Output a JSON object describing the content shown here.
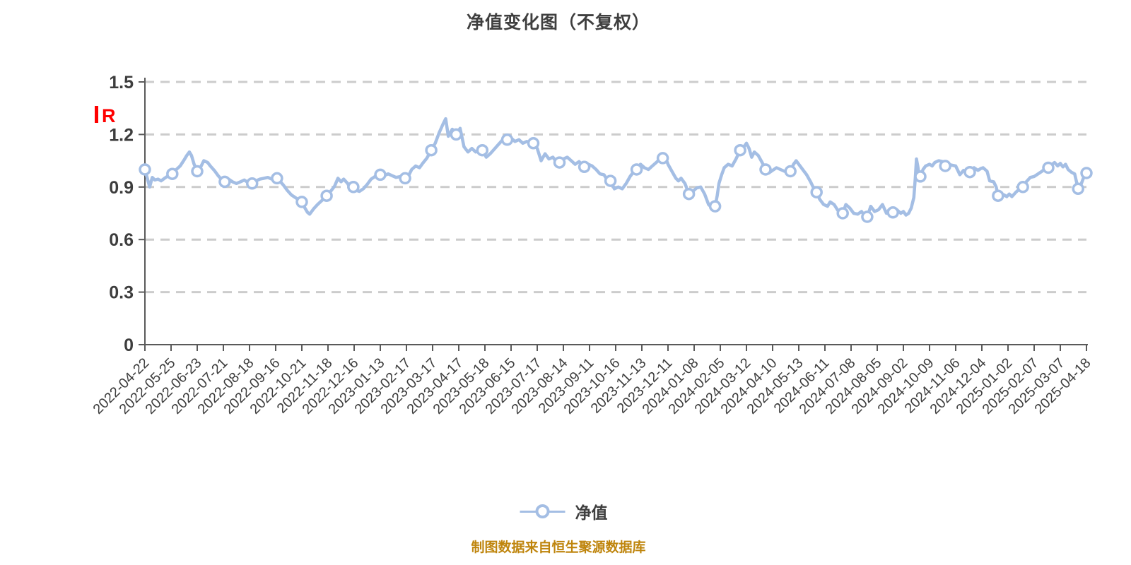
{
  "title": "净值变化图（不复权）",
  "legend": {
    "label": "净值"
  },
  "caption": "制图数据来自恒生聚源数据库",
  "colors": {
    "line": "#a4bee4",
    "marker_fill": "#ffffff",
    "marker_stroke": "#a4bee4",
    "grid": "#cccccc",
    "axis": "#5a5a5a",
    "tick_text": "#3d3d3d",
    "title_text": "#3f3f3f",
    "caption_text": "#bf850d",
    "red_mark": "#ff0000"
  },
  "chart_data": {
    "type": "line",
    "title": "净值变化图（不复权）",
    "series_name": "净值",
    "legend_position": "bottom-center",
    "grid": "horizontal-dashed",
    "ylim": [
      0,
      1.5
    ],
    "y_ticks": [
      "0",
      "0.3",
      "0.6",
      "0.9",
      "1.2",
      "1.5"
    ],
    "y_tick_values": [
      0,
      0.3,
      0.6,
      0.9,
      1.2,
      1.5
    ],
    "red_mark_text": "R",
    "x_tick_labels": [
      "2022-04-22",
      "2022-05-25",
      "2022-06-23",
      "2022-07-21",
      "2022-08-18",
      "2022-09-16",
      "2022-10-21",
      "2022-11-18",
      "2022-12-16",
      "2023-01-13",
      "2023-02-17",
      "2023-03-17",
      "2023-04-17",
      "2023-05-18",
      "2023-06-15",
      "2023-07-17",
      "2023-08-14",
      "2023-09-11",
      "2023-10-16",
      "2023-11-13",
      "2023-12-11",
      "2024-01-08",
      "2024-02-05",
      "2024-03-12",
      "2024-04-10",
      "2024-05-13",
      "2024-06-11",
      "2024-07-08",
      "2024-08-05",
      "2024-09-02",
      "2024-10-09",
      "2024-11-06",
      "2024-12-04",
      "2025-01-02",
      "2025-02-07",
      "2025-03-07",
      "2025-04-18"
    ],
    "points_format": "[x_in_tick_units, nav_value, 1_if_marker]",
    "points": [
      [
        0,
        1.0,
        1
      ],
      [
        0.12,
        0.935
      ],
      [
        0.18,
        0.9
      ],
      [
        0.28,
        0.955
      ],
      [
        0.38,
        0.94
      ],
      [
        0.5,
        0.945
      ],
      [
        0.62,
        0.935
      ],
      [
        0.75,
        0.95
      ],
      [
        0.9,
        0.965
      ],
      [
        1.05,
        0.975,
        1
      ],
      [
        1.2,
        1.0
      ],
      [
        1.35,
        1.02
      ],
      [
        1.5,
        1.055
      ],
      [
        1.6,
        1.08
      ],
      [
        1.7,
        1.1
      ],
      [
        1.78,
        1.08
      ],
      [
        1.88,
        1.03
      ],
      [
        2,
        0.99,
        1
      ],
      [
        2.12,
        1.01
      ],
      [
        2.25,
        1.05
      ],
      [
        2.4,
        1.04
      ],
      [
        2.5,
        1.02
      ],
      [
        2.65,
        0.995
      ],
      [
        2.8,
        0.965
      ],
      [
        2.95,
        0.94
      ],
      [
        3.05,
        0.93,
        1
      ],
      [
        3.2,
        0.945
      ],
      [
        3.35,
        0.93
      ],
      [
        3.5,
        0.92
      ],
      [
        3.65,
        0.93
      ],
      [
        3.8,
        0.94
      ],
      [
        3.95,
        0.925
      ],
      [
        4.1,
        0.92,
        1
      ],
      [
        4.25,
        0.935
      ],
      [
        4.4,
        0.945
      ],
      [
        4.55,
        0.95
      ],
      [
        4.7,
        0.955
      ],
      [
        4.85,
        0.945
      ],
      [
        5.05,
        0.95,
        1
      ],
      [
        5.15,
        0.935
      ],
      [
        5.3,
        0.91
      ],
      [
        5.45,
        0.88
      ],
      [
        5.6,
        0.855
      ],
      [
        5.75,
        0.84
      ],
      [
        5.9,
        0.825
      ],
      [
        6,
        0.815,
        1
      ],
      [
        6.12,
        0.78
      ],
      [
        6.22,
        0.755
      ],
      [
        6.3,
        0.745
      ],
      [
        6.45,
        0.775
      ],
      [
        6.6,
        0.8
      ],
      [
        6.78,
        0.825
      ],
      [
        6.95,
        0.85,
        1
      ],
      [
        7.1,
        0.875
      ],
      [
        7.25,
        0.905
      ],
      [
        7.38,
        0.95
      ],
      [
        7.5,
        0.93
      ],
      [
        7.6,
        0.945
      ],
      [
        7.75,
        0.92
      ],
      [
        7.88,
        0.885
      ],
      [
        7.97,
        0.9,
        1
      ],
      [
        8.1,
        0.88
      ],
      [
        8.2,
        0.875
      ],
      [
        8.35,
        0.89
      ],
      [
        8.5,
        0.915
      ],
      [
        8.65,
        0.945
      ],
      [
        8.8,
        0.96
      ],
      [
        9,
        0.97,
        1
      ],
      [
        9.15,
        0.965
      ],
      [
        9.3,
        0.975
      ],
      [
        9.45,
        0.965
      ],
      [
        9.6,
        0.955
      ],
      [
        9.78,
        0.96
      ],
      [
        9.95,
        0.95,
        1
      ],
      [
        10.1,
        0.97
      ],
      [
        10.2,
        1.0
      ],
      [
        10.35,
        1.02
      ],
      [
        10.5,
        1.01
      ],
      [
        10.62,
        1.035
      ],
      [
        10.78,
        1.065
      ],
      [
        10.95,
        1.11,
        1
      ],
      [
        11.1,
        1.15
      ],
      [
        11.25,
        1.21
      ],
      [
        11.4,
        1.26
      ],
      [
        11.5,
        1.29
      ],
      [
        11.6,
        1.19
      ],
      [
        11.75,
        1.23
      ],
      [
        11.9,
        1.2,
        1
      ],
      [
        12.05,
        1.235
      ],
      [
        12.2,
        1.13
      ],
      [
        12.35,
        1.1
      ],
      [
        12.5,
        1.12
      ],
      [
        12.65,
        1.1
      ],
      [
        12.78,
        1.115
      ],
      [
        12.9,
        1.11,
        1
      ],
      [
        13.05,
        1.07
      ],
      [
        13.2,
        1.09
      ],
      [
        13.35,
        1.115
      ],
      [
        13.5,
        1.14
      ],
      [
        13.65,
        1.165
      ],
      [
        13.78,
        1.19
      ],
      [
        13.85,
        1.17,
        1
      ],
      [
        14,
        1.18
      ],
      [
        14.15,
        1.16
      ],
      [
        14.3,
        1.17
      ],
      [
        14.45,
        1.15
      ],
      [
        14.6,
        1.16
      ],
      [
        14.72,
        1.155
      ],
      [
        14.85,
        1.15,
        1
      ],
      [
        15,
        1.12
      ],
      [
        15.15,
        1.05
      ],
      [
        15.3,
        1.09
      ],
      [
        15.45,
        1.06
      ],
      [
        15.6,
        1.07
      ],
      [
        15.72,
        1.045
      ],
      [
        15.85,
        1.04,
        1
      ],
      [
        16,
        1.06
      ],
      [
        16.15,
        1.07
      ],
      [
        16.3,
        1.05
      ],
      [
        16.45,
        1.03
      ],
      [
        16.6,
        1.045
      ],
      [
        16.8,
        1.015,
        1
      ],
      [
        16.95,
        1.03
      ],
      [
        17.1,
        1.02
      ],
      [
        17.25,
        1.0
      ],
      [
        17.4,
        0.975
      ],
      [
        17.55,
        0.97
      ],
      [
        17.68,
        0.94
      ],
      [
        17.8,
        0.935,
        1
      ],
      [
        17.95,
        0.89
      ],
      [
        18.1,
        0.9
      ],
      [
        18.25,
        0.89
      ],
      [
        18.4,
        0.92
      ],
      [
        18.55,
        0.96
      ],
      [
        18.7,
        0.99
      ],
      [
        18.8,
        1.0,
        1
      ],
      [
        18.95,
        1.03
      ],
      [
        19.1,
        1.01
      ],
      [
        19.25,
        1.0
      ],
      [
        19.4,
        1.02
      ],
      [
        19.55,
        1.04
      ],
      [
        19.7,
        1.06
      ],
      [
        19.8,
        1.065,
        1
      ],
      [
        19.9,
        1.07
      ],
      [
        20,
        1.03
      ],
      [
        20.15,
        0.99
      ],
      [
        20.3,
        0.95
      ],
      [
        20.4,
        0.935
      ],
      [
        20.5,
        0.95
      ],
      [
        20.65,
        0.92
      ],
      [
        20.8,
        0.86,
        1
      ],
      [
        20.95,
        0.875
      ],
      [
        21.1,
        0.895
      ],
      [
        21.25,
        0.9
      ],
      [
        21.4,
        0.86
      ],
      [
        21.55,
        0.8
      ],
      [
        21.7,
        0.78
      ],
      [
        21.8,
        0.79,
        1
      ],
      [
        21.88,
        0.85
      ],
      [
        21.95,
        0.92
      ],
      [
        22.05,
        0.97
      ],
      [
        22.15,
        1.01
      ],
      [
        22.3,
        1.03
      ],
      [
        22.45,
        1.02
      ],
      [
        22.6,
        1.06
      ],
      [
        22.76,
        1.11,
        1
      ],
      [
        22.9,
        1.13
      ],
      [
        23,
        1.15
      ],
      [
        23.1,
        1.12
      ],
      [
        23.2,
        1.07
      ],
      [
        23.3,
        1.1
      ],
      [
        23.45,
        1.08
      ],
      [
        23.6,
        1.04
      ],
      [
        23.73,
        1.0,
        1
      ],
      [
        23.85,
        0.98
      ],
      [
        24,
        0.995
      ],
      [
        24.15,
        1.01
      ],
      [
        24.3,
        1.0
      ],
      [
        24.45,
        0.99
      ],
      [
        24.55,
        0.995
      ],
      [
        24.68,
        0.99,
        1
      ],
      [
        24.8,
        1.03
      ],
      [
        24.9,
        1.05
      ],
      [
        25.05,
        1.02
      ],
      [
        25.2,
        0.99
      ],
      [
        25.3,
        0.97
      ],
      [
        25.45,
        0.93
      ],
      [
        25.55,
        0.9
      ],
      [
        25.68,
        0.87,
        1
      ],
      [
        25.8,
        0.83
      ],
      [
        25.95,
        0.8
      ],
      [
        26.1,
        0.79
      ],
      [
        26.2,
        0.815
      ],
      [
        26.35,
        0.8
      ],
      [
        26.5,
        0.765
      ],
      [
        26.68,
        0.75,
        1
      ],
      [
        26.8,
        0.8
      ],
      [
        26.95,
        0.78
      ],
      [
        27.1,
        0.75
      ],
      [
        27.25,
        0.745
      ],
      [
        27.4,
        0.76
      ],
      [
        27.5,
        0.74
      ],
      [
        27.62,
        0.73,
        1
      ],
      [
        27.75,
        0.79
      ],
      [
        27.9,
        0.76
      ],
      [
        28.05,
        0.77
      ],
      [
        28.2,
        0.8
      ],
      [
        28.35,
        0.75
      ],
      [
        28.45,
        0.77
      ],
      [
        28.6,
        0.755,
        1
      ],
      [
        28.75,
        0.77
      ],
      [
        28.9,
        0.75
      ],
      [
        29,
        0.76
      ],
      [
        29.1,
        0.74
      ],
      [
        29.2,
        0.75
      ],
      [
        29.3,
        0.78
      ],
      [
        29.4,
        0.84
      ],
      [
        29.46,
        0.96
      ],
      [
        29.5,
        1.06
      ],
      [
        29.55,
        1.02
      ],
      [
        29.6,
        0.97
      ],
      [
        29.65,
        0.96,
        1
      ],
      [
        29.75,
        1.0
      ],
      [
        29.85,
        1.02
      ],
      [
        30,
        1.03
      ],
      [
        30.1,
        1.02
      ],
      [
        30.2,
        1.04
      ],
      [
        30.35,
        1.05
      ],
      [
        30.5,
        1.045
      ],
      [
        30.6,
        1.02,
        1
      ],
      [
        30.7,
        1.03
      ],
      [
        30.85,
        1.025
      ],
      [
        31,
        1.02
      ],
      [
        31.16,
        0.97
      ],
      [
        31.3,
        0.995
      ],
      [
        31.42,
        0.98
      ],
      [
        31.54,
        0.985,
        1
      ],
      [
        31.7,
        1.01
      ],
      [
        31.85,
        0.995
      ],
      [
        31.95,
        1.005
      ],
      [
        32.05,
        1.01
      ],
      [
        32.2,
        0.99
      ],
      [
        32.3,
        0.935
      ],
      [
        32.45,
        0.93
      ],
      [
        32.55,
        0.9
      ],
      [
        32.62,
        0.85,
        1
      ],
      [
        32.75,
        0.84
      ],
      [
        32.85,
        0.855
      ],
      [
        32.95,
        0.845
      ],
      [
        33.05,
        0.86
      ],
      [
        33.15,
        0.845
      ],
      [
        33.3,
        0.87
      ],
      [
        33.45,
        0.89
      ],
      [
        33.57,
        0.9,
        1
      ],
      [
        33.7,
        0.93
      ],
      [
        33.85,
        0.955
      ],
      [
        34,
        0.96
      ],
      [
        34.15,
        0.975
      ],
      [
        34.3,
        0.99
      ],
      [
        34.42,
        1.005
      ],
      [
        34.54,
        1.01,
        1
      ],
      [
        34.65,
        1.025
      ],
      [
        34.78,
        1.04
      ],
      [
        34.9,
        1.02
      ],
      [
        35,
        1.035
      ],
      [
        35.1,
        1.015
      ],
      [
        35.2,
        1.03
      ],
      [
        35.3,
        1.0
      ],
      [
        35.42,
        0.985
      ],
      [
        35.55,
        0.975
      ],
      [
        35.68,
        0.89,
        1
      ],
      [
        35.78,
        0.91
      ],
      [
        35.88,
        0.95
      ],
      [
        36,
        0.98,
        1
      ]
    ]
  }
}
